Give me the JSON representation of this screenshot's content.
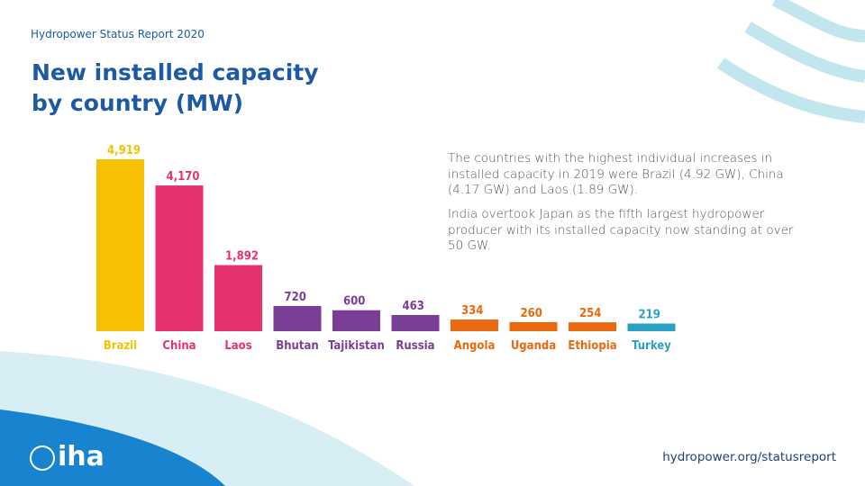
{
  "header": "Hydropower Status Report 2020",
  "chart_data": {
    "type": "bar",
    "title": "New installed capacity by country (MW)",
    "categories": [
      "Brazil",
      "China",
      "Laos",
      "Bhutan",
      "Tajikistan",
      "Russia",
      "Angola",
      "Uganda",
      "Ethiopia",
      "Turkey"
    ],
    "values": [
      4919,
      4170,
      1892,
      720,
      600,
      463,
      334,
      260,
      254,
      219
    ],
    "value_labels": [
      "4,919",
      "4,170",
      "1,892",
      "720",
      "600",
      "463",
      "334",
      "260",
      "254",
      "219"
    ],
    "colors": [
      "#f6c100",
      "#e4336f",
      "#e4336f",
      "#7a3e96",
      "#7a3e96",
      "#7a3e96",
      "#e8690f",
      "#e8690f",
      "#e8690f",
      "#2aa1c3"
    ]
  },
  "paragraphs": [
    "The countries with the highest individual increases in installed capacity in 2019 were Brazil (4.92 GW), China (4.17 GW) and Laos (1.89 GW).",
    "India overtook Japan as the fifth largest hydropower producer with its installed capacity now standing at over 50 GW."
  ],
  "footer": {
    "logo": "iha",
    "url": "hydropower.org/statusreport"
  }
}
